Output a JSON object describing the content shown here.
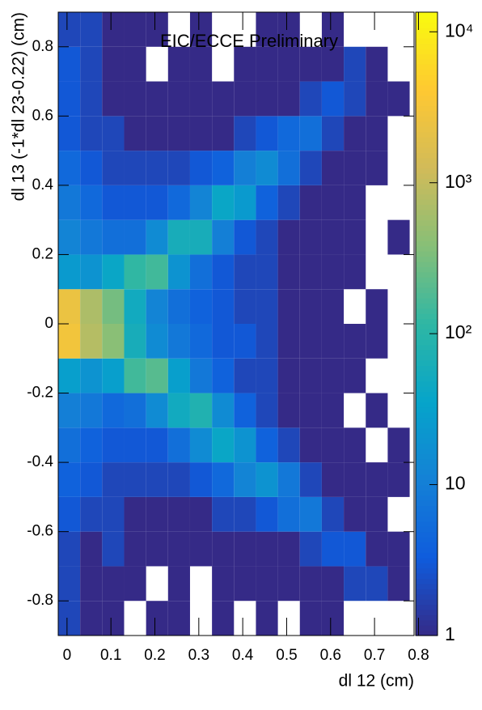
{
  "chart_data": {
    "type": "heatmap",
    "annotation": "EIC/ECCE Preliminary",
    "x_label": "dl 12 (cm)",
    "y_label": "dl 13 (-1*dl 23-0.22) (cm)",
    "xlim": [
      -0.02,
      0.79
    ],
    "ylim": [
      -0.9,
      0.9
    ],
    "xticks": [
      0,
      0.1,
      0.2,
      0.3,
      0.4,
      0.5,
      0.6,
      0.7,
      0.8
    ],
    "yticks": [
      -0.8,
      -0.6,
      -0.4,
      -0.2,
      0,
      0.2,
      0.4,
      0.6,
      0.8
    ],
    "x_bins": [
      -0.02,
      0.03,
      0.08,
      0.13,
      0.18,
      0.23,
      0.28,
      0.33,
      0.38,
      0.43,
      0.48,
      0.53,
      0.58,
      0.63,
      0.68,
      0.73,
      0.78
    ],
    "y_bins": [
      -0.9,
      -0.8,
      -0.7,
      -0.6,
      -0.5,
      -0.4,
      -0.3,
      -0.2,
      -0.1,
      0,
      0.1,
      0.2,
      0.3,
      0.4,
      0.5,
      0.6,
      0.7,
      0.8,
      0.9
    ],
    "values": [
      [
        2,
        1,
        1,
        0,
        1,
        1,
        0,
        1,
        0,
        1,
        0,
        1,
        1,
        0,
        0,
        0
      ],
      [
        2,
        1,
        1,
        1,
        0,
        1,
        0,
        1,
        1,
        1,
        1,
        1,
        1,
        2,
        2,
        1
      ],
      [
        2,
        1,
        2,
        1,
        1,
        1,
        1,
        1,
        1,
        1,
        1,
        2,
        3,
        3,
        1,
        1
      ],
      [
        3,
        2,
        2,
        1,
        1,
        1,
        1,
        2,
        2,
        3,
        6,
        8,
        2,
        1,
        1,
        0
      ],
      [
        4,
        3,
        2,
        2,
        2,
        2,
        3,
        5,
        12,
        20,
        8,
        2,
        1,
        1,
        1,
        1
      ],
      [
        6,
        4,
        3,
        3,
        3,
        6,
        15,
        40,
        20,
        4,
        2,
        1,
        1,
        1,
        0,
        1
      ],
      [
        10,
        8,
        5,
        6,
        15,
        50,
        80,
        15,
        4,
        2,
        1,
        1,
        1,
        0,
        1,
        0
      ],
      [
        30,
        20,
        30,
        150,
        200,
        30,
        8,
        4,
        2,
        2,
        1,
        1,
        1,
        1,
        0,
        0
      ],
      [
        3000,
        800,
        400,
        60,
        15,
        8,
        5,
        3,
        3,
        2,
        1,
        1,
        1,
        1,
        1,
        0
      ],
      [
        2500,
        700,
        300,
        50,
        12,
        6,
        4,
        3,
        2,
        2,
        1,
        1,
        1,
        0,
        1,
        0
      ],
      [
        25,
        20,
        40,
        120,
        150,
        20,
        6,
        3,
        2,
        2,
        1,
        1,
        1,
        1,
        0,
        0
      ],
      [
        12,
        8,
        6,
        6,
        15,
        60,
        60,
        10,
        3,
        2,
        1,
        1,
        1,
        1,
        0,
        1
      ],
      [
        8,
        5,
        3,
        3,
        3,
        5,
        12,
        40,
        25,
        4,
        2,
        1,
        1,
        1,
        0,
        0
      ],
      [
        5,
        3,
        2,
        2,
        2,
        2,
        3,
        4,
        10,
        15,
        6,
        2,
        1,
        1,
        1,
        0
      ],
      [
        3,
        2,
        2,
        1,
        1,
        1,
        1,
        1,
        2,
        3,
        5,
        6,
        2,
        1,
        1,
        0
      ],
      [
        3,
        2,
        1,
        1,
        1,
        1,
        1,
        1,
        1,
        1,
        1,
        2,
        3,
        2,
        1,
        1
      ],
      [
        3,
        2,
        1,
        1,
        0,
        1,
        1,
        0,
        1,
        1,
        1,
        1,
        1,
        2,
        1,
        0
      ],
      [
        2,
        2,
        1,
        1,
        1,
        0,
        1,
        0,
        0,
        1,
        1,
        0,
        1,
        0,
        0,
        0
      ]
    ],
    "zlim": [
      1,
      13500
    ],
    "zlog": true,
    "zticks": [
      1,
      10,
      {
        "value": 100,
        "label": "10²"
      },
      {
        "value": 1000,
        "label": "10³"
      },
      {
        "value": 10000,
        "label": "10⁴"
      }
    ],
    "colorscale": [
      "#352a87",
      "#0f5cdd",
      "#1481d6",
      "#06a4ca",
      "#2eb7a4",
      "#87bf77",
      "#d1bb59",
      "#fec832",
      "#f9fb0e"
    ]
  }
}
